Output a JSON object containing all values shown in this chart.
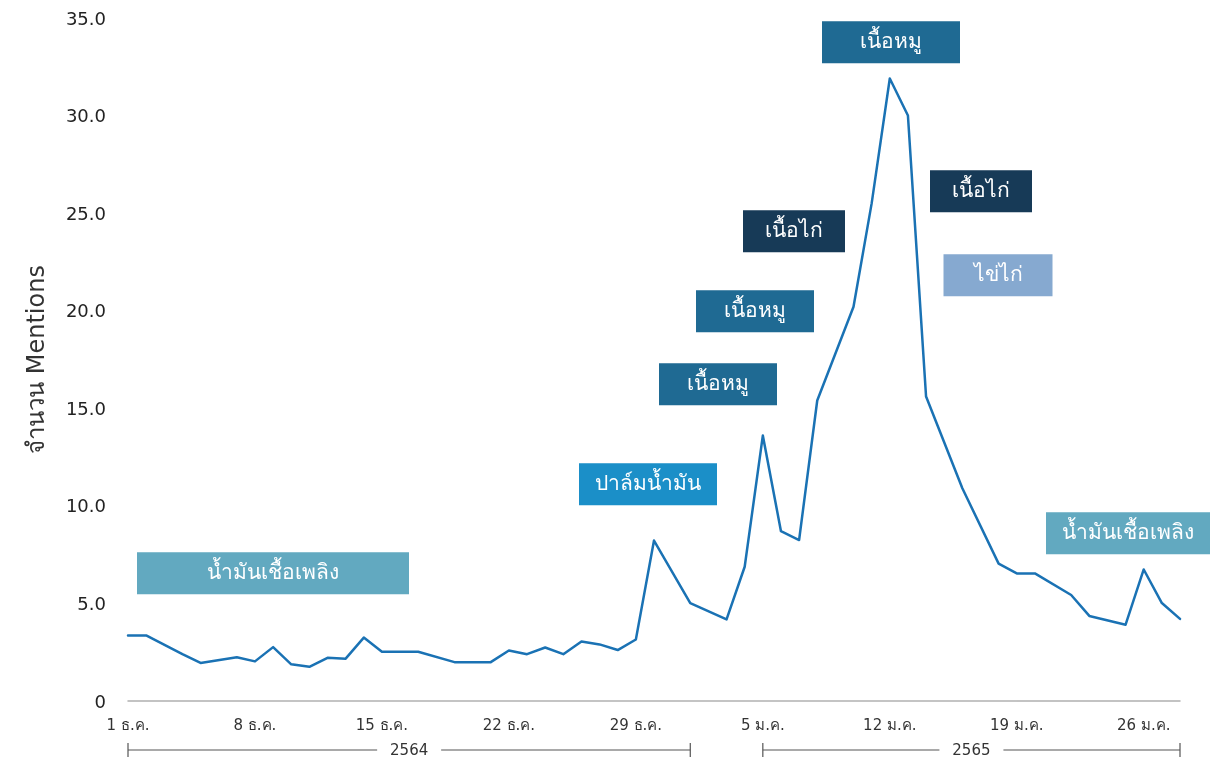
{
  "chart_data": {
    "type": "line",
    "ylabel": "จำนวน Mentions",
    "categories": [
      "1 ธ.ค.",
      null,
      null,
      null,
      null,
      null,
      null,
      "8 ธ.ค.",
      null,
      null,
      null,
      null,
      null,
      null,
      "15 ธ.ค.",
      null,
      null,
      null,
      null,
      null,
      null,
      "22 ธ.ค.",
      null,
      null,
      null,
      null,
      null,
      null,
      "29 ธ.ค.",
      null,
      null,
      null,
      null,
      null,
      null,
      "5 ม.ค.",
      null,
      null,
      null,
      null,
      null,
      null,
      "12 ม.ค.",
      null,
      null,
      null,
      null,
      null,
      null,
      "19 ม.ค.",
      null,
      null,
      null,
      null,
      null,
      null,
      "26 ม.ค.",
      null,
      null
    ],
    "series": [
      {
        "color": "#1a72b4",
        "values": [
          3.36,
          3.36,
          null,
          2.4,
          1.95,
          null,
          2.24,
          2.03,
          2.76,
          1.88,
          1.75,
          2.21,
          2.17,
          3.25,
          2.52,
          null,
          2.52,
          null,
          1.99,
          null,
          1.99,
          2.59,
          2.4,
          2.74,
          2.4,
          3.05,
          2.9,
          2.61,
          3.15,
          8.22,
          null,
          5.02,
          null,
          4.18,
          6.88,
          13.6,
          8.7,
          8.25,
          15.4,
          null,
          20.2,
          25.5,
          31.9,
          30.0,
          15.6,
          null,
          10.9,
          null,
          7.04,
          6.54,
          6.54,
          null,
          5.43,
          4.36,
          null,
          3.91,
          6.74,
          5.02,
          4.21
        ]
      }
    ],
    "ylim": [
      0,
      35
    ],
    "yticks": [
      0,
      {
        "value": 5,
        "label": "5.0"
      },
      {
        "value": 10,
        "label": "10.0"
      },
      {
        "value": 15,
        "label": "15.0"
      },
      {
        "value": 20,
        "label": "20.0"
      },
      {
        "value": 25,
        "label": "25.0"
      },
      {
        "value": 30,
        "label": "30.0"
      },
      {
        "value": 35,
        "label": "35.0"
      }
    ],
    "annotations": [
      "น้ำมันเชื้อเพลิง",
      "ปาล์มน้ำมัน",
      "เนื้อหมู",
      "เนื้อหมู",
      "เนื้อไก่",
      "เนื้อหมู",
      "เนื้อไก่",
      "ไข่ไก่",
      "น้ำมันเชื้อเพลิง",
      "2564",
      "2565"
    ],
    "grid": false,
    "marker": "none",
    "line_style": "solid"
  }
}
